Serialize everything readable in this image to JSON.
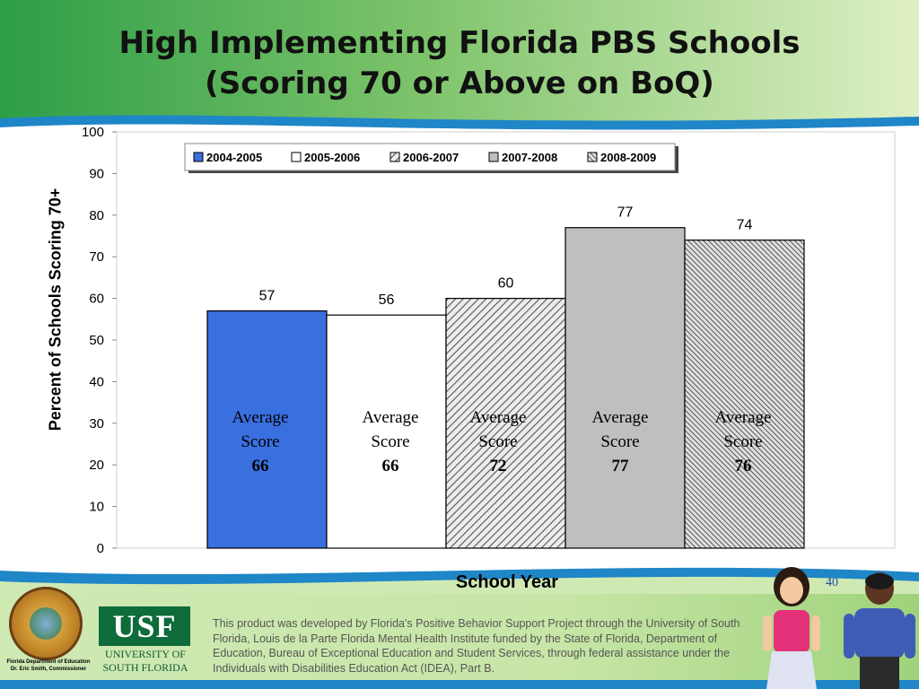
{
  "slide": {
    "title_line1": "High Implementing Florida PBS Schools",
    "title_line2": "(Scoring 70 or Above on BoQ)",
    "page_number": "40"
  },
  "chart_data": {
    "type": "bar",
    "title": "",
    "xlabel": "School Year",
    "ylabel": "Percent of Schools Scoring 70+",
    "ylim": [
      0,
      100
    ],
    "yticks": [
      0,
      10,
      20,
      30,
      40,
      50,
      60,
      70,
      80,
      90,
      100
    ],
    "legend_position": "top",
    "series": [
      {
        "name": "2004-2005",
        "value": 57,
        "fill": "solid",
        "color": "#3a6fe0",
        "avg_label": [
          "Average",
          "Score",
          "66"
        ]
      },
      {
        "name": "2005-2006",
        "value": 56,
        "fill": "solid",
        "color": "#ffffff",
        "avg_label": [
          "Average",
          "Score",
          "66"
        ]
      },
      {
        "name": "2006-2007",
        "value": 60,
        "fill": "diagonal-hatch",
        "color": "#d9d9d9",
        "avg_label": [
          "Average",
          "Score",
          "72"
        ]
      },
      {
        "name": "2007-2008",
        "value": 77,
        "fill": "solid",
        "color": "#bfbfbf",
        "avg_label": [
          "Average",
          "Score",
          "77"
        ]
      },
      {
        "name": "2008-2009",
        "value": 74,
        "fill": "dense-hatch",
        "color": "#9a9a9a",
        "avg_label": [
          "Average",
          "Score",
          "76"
        ]
      }
    ]
  },
  "footer": {
    "doe_line1": "Florida Department of Education",
    "doe_line2": "Dr. Eric Smith, Commissioner",
    "usf_logo": "USF",
    "usf_line1": "UNIVERSITY OF",
    "usf_line2": "SOUTH FLORIDA",
    "disclaimer": "This product was developed by Florida's Positive Behavior Support Project through the University of South Florida, Louis de la Parte Florida Mental Health Institute funded by the State of Florida, Department of Education, Bureau of Exceptional Education and Student Services, through federal assistance under the Individuals with Disabilities Education Act (IDEA), Part B."
  }
}
